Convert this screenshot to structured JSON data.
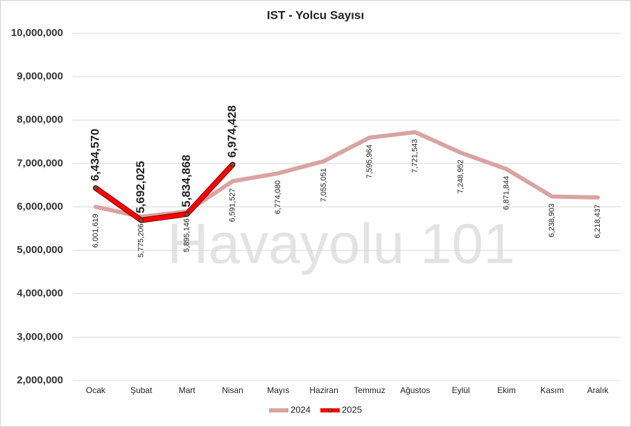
{
  "chart_data": {
    "type": "line",
    "title": "IST - Yolcu Sayısı",
    "watermark": "Havayolu 101",
    "categories": [
      "Ocak",
      "Şubat",
      "Mart",
      "Nisan",
      "Mayıs",
      "Haziran",
      "Temmuz",
      "Ağustos",
      "Eylül",
      "Ekim",
      "Kasım",
      "Aralık"
    ],
    "series": [
      {
        "name": "2024",
        "color": "#d9a3a3",
        "values": [
          6001619,
          5775206,
          5895146,
          6591527,
          6774080,
          7055051,
          7595964,
          7721543,
          7248952,
          6871844,
          6238903,
          6218437
        ],
        "value_labels": [
          "6,001,619",
          "5,775,206",
          "5,895,146",
          "6,591,527",
          "6,774,080",
          "7,055,051",
          "7,595,964",
          "7,721,543",
          "7,248,952",
          "6,871,844",
          "6,238,903",
          "6,218,437"
        ]
      },
      {
        "name": "2025",
        "color": "#ff0000",
        "values": [
          6434570,
          5692025,
          5834868,
          6974428,
          null,
          null,
          null,
          null,
          null,
          null,
          null,
          null
        ],
        "value_labels": [
          "6,434,570",
          "5,692,025",
          "5,834,868",
          "6,974,428",
          null,
          null,
          null,
          null,
          null,
          null,
          null,
          null
        ]
      }
    ],
    "ylim": [
      2000000,
      10000000
    ],
    "yticks": [
      {
        "value": 2000000,
        "label": "2,000,000"
      },
      {
        "value": 3000000,
        "label": "3,000,000"
      },
      {
        "value": 4000000,
        "label": "4,000,000"
      },
      {
        "value": 5000000,
        "label": "5,000,000"
      },
      {
        "value": 6000000,
        "label": "6,000,000"
      },
      {
        "value": 7000000,
        "label": "7,000,000"
      },
      {
        "value": 8000000,
        "label": "8,000,000"
      },
      {
        "value": 9000000,
        "label": "9,000,000"
      },
      {
        "value": 10000000,
        "label": "10,000,000"
      }
    ],
    "grid": true,
    "legend": "bottom"
  }
}
